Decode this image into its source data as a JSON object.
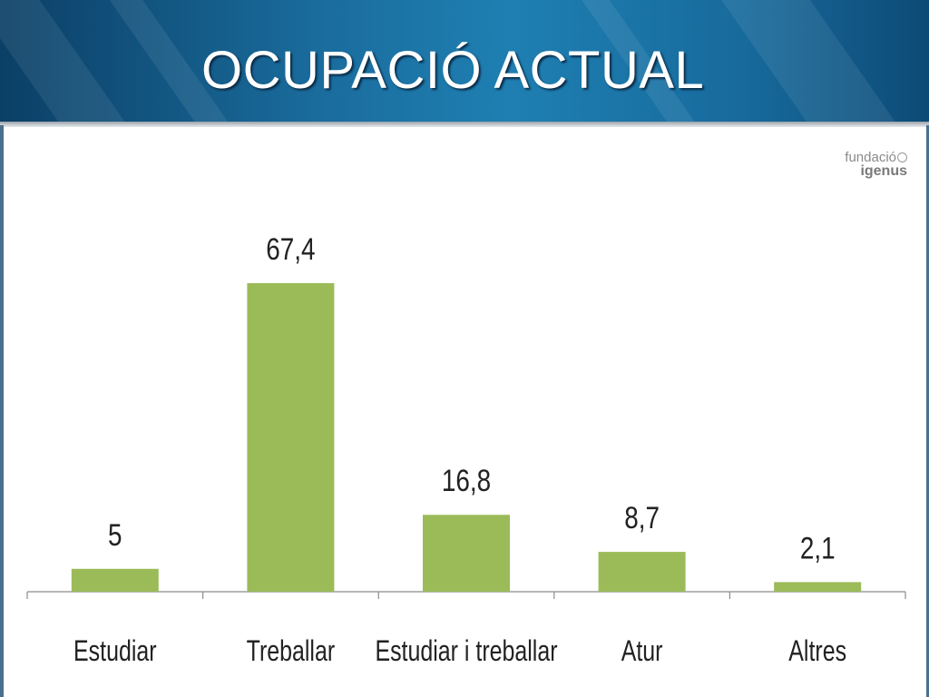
{
  "header": {
    "title": "OCUPACIÓ ACTUAL"
  },
  "logo": {
    "line1": "fundació",
    "line2": "igenus"
  },
  "colors": {
    "bar": "#9bbb59",
    "header": "#1a6d9e"
  },
  "chart_data": {
    "type": "bar",
    "categories": [
      "Estudiar",
      "Treballar",
      "Estudiar i treballar",
      "Atur",
      "Altres"
    ],
    "values": [
      5,
      67.4,
      16.8,
      8.7,
      2.1
    ],
    "value_labels": [
      "5",
      "67,4",
      "16,8",
      "8,7",
      "2,1"
    ],
    "title": "",
    "xlabel": "",
    "ylabel": "",
    "ylim": [
      0,
      75
    ],
    "grid": false,
    "legend": "none"
  }
}
